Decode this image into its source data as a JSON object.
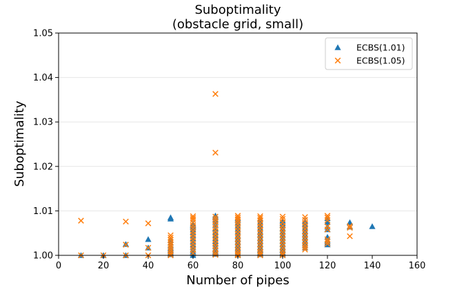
{
  "chart_data": {
    "type": "scatter",
    "title": "Suboptimality",
    "subtitle": "(obstacle grid, small)",
    "xlabel": "Number of pipes",
    "ylabel": "Suboptimality",
    "xlim": [
      0,
      160
    ],
    "ylim": [
      1.0,
      1.05
    ],
    "xticks": [
      0,
      20,
      40,
      60,
      80,
      100,
      120,
      140,
      160
    ],
    "yticks": [
      1.0,
      1.01,
      1.02,
      1.03,
      1.04,
      1.05
    ],
    "xtick_labels": [
      "0",
      "20",
      "40",
      "60",
      "80",
      "100",
      "120",
      "140",
      "160"
    ],
    "ytick_labels": [
      "1.00",
      "1.01",
      "1.02",
      "1.03",
      "1.04",
      "1.05"
    ],
    "grid": "horizontal",
    "legend_position": "top-right",
    "series": [
      {
        "name": "ECBS(1.01)",
        "marker": "triangle",
        "color": "#1f77b4",
        "x": [
          10,
          20,
          30,
          30,
          40,
          40,
          50,
          50,
          50,
          50,
          50,
          50,
          50,
          50,
          50,
          60,
          60,
          60,
          60,
          60,
          60,
          60,
          60,
          60,
          60,
          60,
          60,
          60,
          60,
          60,
          70,
          70,
          70,
          70,
          70,
          70,
          70,
          70,
          70,
          70,
          70,
          70,
          70,
          70,
          70,
          80,
          80,
          80,
          80,
          80,
          80,
          80,
          80,
          80,
          80,
          80,
          80,
          80,
          80,
          90,
          90,
          90,
          90,
          90,
          90,
          90,
          90,
          90,
          90,
          90,
          90,
          90,
          100,
          100,
          100,
          100,
          100,
          100,
          100,
          100,
          100,
          100,
          100,
          100,
          100,
          110,
          110,
          110,
          110,
          110,
          110,
          110,
          110,
          110,
          110,
          120,
          120,
          120,
          120,
          120,
          120,
          120,
          120,
          130,
          130,
          140
        ],
        "y": [
          1.0,
          1.0,
          1.0025,
          1.0,
          1.0036,
          1.0017,
          1.0085,
          1.0082,
          1.0034,
          1.0028,
          1.0022,
          1.0016,
          1.0011,
          1.0006,
          1.0002,
          1.0071,
          1.0068,
          1.0066,
          1.0063,
          1.0058,
          1.0052,
          1.0045,
          1.0038,
          1.0031,
          1.0024,
          1.0018,
          1.0012,
          1.0008,
          1.0004,
          1.0,
          1.0089,
          1.0085,
          1.008,
          1.0075,
          1.0068,
          1.006,
          1.0052,
          1.0045,
          1.0038,
          1.0032,
          1.0026,
          1.002,
          1.0014,
          1.0008,
          1.0003,
          1.0083,
          1.0079,
          1.0073,
          1.0066,
          1.0059,
          1.0052,
          1.0044,
          1.0037,
          1.003,
          1.0023,
          1.0016,
          1.001,
          1.0005,
          1.0001,
          1.0082,
          1.0075,
          1.0068,
          1.0061,
          1.0053,
          1.0046,
          1.0039,
          1.0032,
          1.0025,
          1.0018,
          1.0012,
          1.0006,
          1.0002,
          1.0078,
          1.0072,
          1.0068,
          1.006,
          1.0053,
          1.0046,
          1.0039,
          1.0032,
          1.0025,
          1.0018,
          1.0012,
          1.0006,
          1.0002,
          1.0077,
          1.007,
          1.0062,
          1.0054,
          1.0047,
          1.004,
          1.0033,
          1.0027,
          1.0022,
          1.0017,
          1.0083,
          1.0075,
          1.0064,
          1.0058,
          1.0041,
          1.0033,
          1.0028,
          1.0024,
          1.0074,
          1.0064,
          1.0065
        ]
      },
      {
        "name": "ECBS(1.05)",
        "marker": "x",
        "color": "#ff7f0e",
        "x": [
          10,
          10,
          20,
          30,
          30,
          30,
          40,
          40,
          40,
          50,
          50,
          50,
          50,
          50,
          50,
          50,
          50,
          50,
          50,
          60,
          60,
          60,
          60,
          60,
          60,
          60,
          60,
          60,
          60,
          60,
          60,
          60,
          60,
          70,
          70,
          70,
          70,
          70,
          70,
          70,
          70,
          70,
          70,
          70,
          70,
          70,
          70,
          70,
          70,
          80,
          80,
          80,
          80,
          80,
          80,
          80,
          80,
          80,
          80,
          80,
          80,
          80,
          80,
          80,
          80,
          90,
          90,
          90,
          90,
          90,
          90,
          90,
          90,
          90,
          90,
          90,
          90,
          90,
          90,
          90,
          100,
          100,
          100,
          100,
          100,
          100,
          100,
          100,
          100,
          100,
          100,
          100,
          100,
          100,
          110,
          110,
          110,
          110,
          110,
          110,
          110,
          110,
          110,
          110,
          110,
          110,
          120,
          120,
          120,
          120,
          120,
          120,
          120,
          120,
          130,
          130,
          130
        ],
        "y": [
          1.0078,
          1.0,
          1.0,
          1.0076,
          1.0024,
          1.0,
          1.0072,
          1.0017,
          1.0,
          1.0045,
          1.004,
          1.0035,
          1.0029,
          1.0024,
          1.0019,
          1.0014,
          1.0009,
          1.0004,
          1.0,
          1.0088,
          1.0084,
          1.008,
          1.0074,
          1.0067,
          1.0061,
          1.0054,
          1.0047,
          1.004,
          1.0033,
          1.0026,
          1.0019,
          1.0012,
          1.0005,
          1.0363,
          1.0231,
          1.0087,
          1.0082,
          1.0076,
          1.0069,
          1.0062,
          1.0055,
          1.0048,
          1.0041,
          1.0034,
          1.0027,
          1.002,
          1.0013,
          1.0006,
          1.0001,
          1.0089,
          1.0085,
          1.0081,
          1.0076,
          1.007,
          1.0063,
          1.0056,
          1.0049,
          1.0042,
          1.0035,
          1.0028,
          1.0021,
          1.0014,
          1.0008,
          1.0003,
          1.0,
          1.0088,
          1.0084,
          1.0079,
          1.0072,
          1.0065,
          1.0058,
          1.0051,
          1.0044,
          1.0037,
          1.003,
          1.0023,
          1.0016,
          1.0009,
          1.0004,
          1.0,
          1.0087,
          1.0082,
          1.0074,
          1.0066,
          1.0059,
          1.0052,
          1.0045,
          1.0038,
          1.0031,
          1.0024,
          1.0017,
          1.001,
          1.0004,
          1.0,
          1.0086,
          1.008,
          1.0073,
          1.0066,
          1.0059,
          1.0052,
          1.0045,
          1.0038,
          1.0031,
          1.0024,
          1.0018,
          1.0013,
          1.0089,
          1.0085,
          1.0079,
          1.0065,
          1.0058,
          1.0036,
          1.0031,
          1.0026,
          1.0066,
          1.0062,
          1.0043
        ]
      }
    ]
  }
}
